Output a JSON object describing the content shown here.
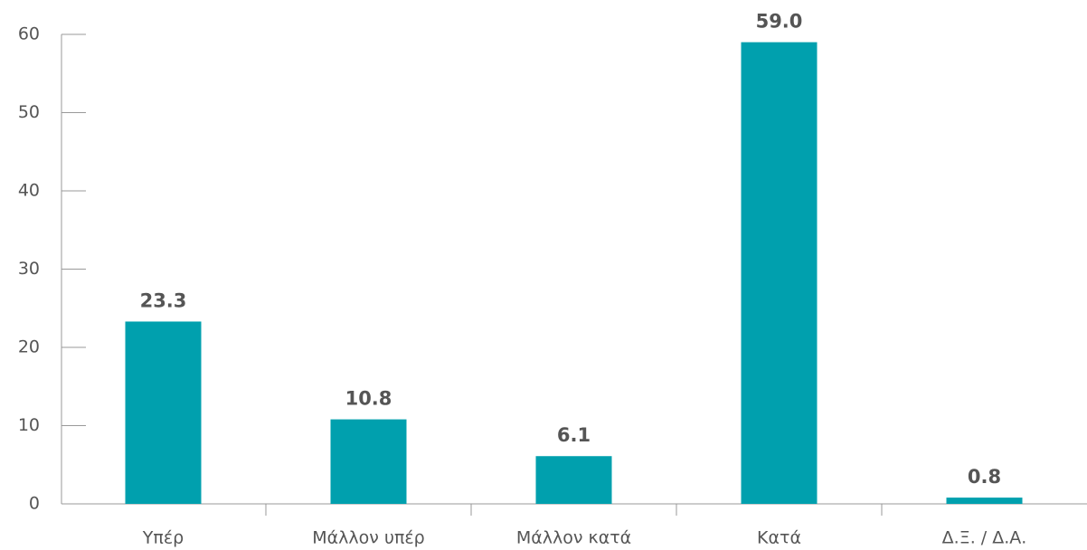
{
  "chart_data": {
    "type": "bar",
    "categories": [
      "Υπέρ",
      "Μάλλον υπέρ",
      "Μάλλον κατά",
      "Κατά",
      "Δ.Ξ. / Δ.Α."
    ],
    "values": [
      23.3,
      10.8,
      6.1,
      59.0,
      0.8
    ],
    "value_labels": [
      "23.3",
      "10.8",
      "6.1",
      "59.0",
      "0.8"
    ],
    "color": "#00a0ae",
    "ylim": [
      0,
      60
    ],
    "yticks": [
      0,
      10,
      20,
      30,
      40,
      50,
      60
    ],
    "grid": false
  }
}
